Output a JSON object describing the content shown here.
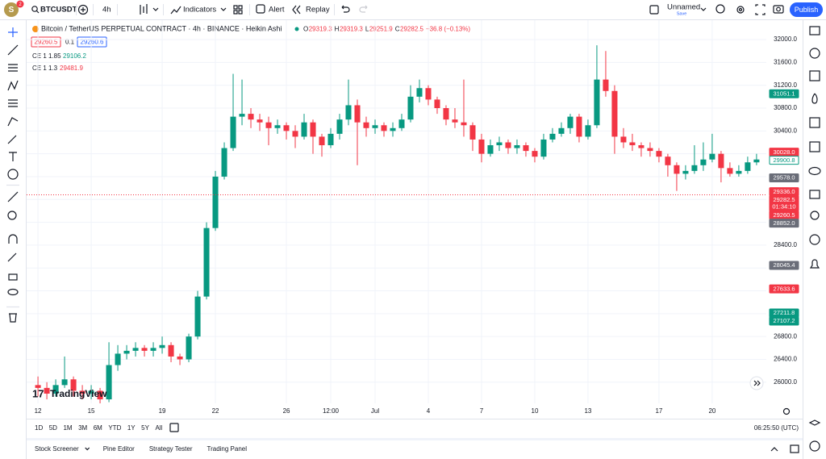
{
  "toolbar": {
    "avatar": "S",
    "badge": "2",
    "symbol": "BTCUSDT",
    "interval": "4h",
    "indicators": "Indicators",
    "alert": "Alert",
    "replay": "Replay",
    "layout_name": "Unnamed",
    "layout_status": "Save",
    "publish": "Publish"
  },
  "legend": {
    "title": "Bitcoin / TetherUS PERPETUAL CONTRACT · 4h · BINANCE · Heikin Ashi",
    "ohlc": [
      {
        "key": "O",
        "value": "29319.3"
      },
      {
        "key": "H",
        "value": "29319.3"
      },
      {
        "key": "L",
        "value": "29251.9"
      },
      {
        "key": "C",
        "value": "29282.5"
      }
    ],
    "change": "−36.8 (−0.13%)"
  },
  "indicator_rows": {
    "price_box": "29260.5",
    "step": "0.1",
    "price_box_2": "29260.6",
    "ce_1": {
      "name": "CE 1 1.85",
      "value": "29106.2"
    },
    "ce_2": {
      "name": "CE 1 1.3",
      "value": "29481.9"
    }
  },
  "watermark": "TradingView",
  "timeframes": [
    "1D",
    "5D",
    "1M",
    "3M",
    "6M",
    "YTD",
    "1Y",
    "5Y",
    "All"
  ],
  "clock": "06:25:50 (UTC)",
  "panels": [
    "Stock Screener",
    "Pine Editor",
    "Strategy Tester",
    "Trading Panel"
  ],
  "chart_data": {
    "type": "candlestick",
    "up_color": "#089981",
    "down_color": "#f23645",
    "grid": true,
    "x": [
      12,
      12.5,
      13,
      13.5,
      14,
      14.5,
      15,
      15.5,
      16,
      16.5,
      17,
      17.5,
      18,
      18.5,
      19,
      19.5,
      20,
      20.5,
      21,
      21.5,
      22,
      22.5,
      23,
      23.5,
      24,
      24.5,
      25,
      25.5,
      26,
      26.5,
      27,
      27.5,
      28,
      28.5,
      29,
      29.5,
      30,
      30.5,
      31,
      31.5,
      32,
      32.5,
      33,
      33.5,
      34,
      34.5,
      35,
      35.5,
      36,
      36.5,
      37,
      37.5,
      38,
      38.5,
      39,
      39.5,
      40,
      40.5,
      41,
      41.5,
      42,
      42.5,
      43,
      43.5,
      44,
      44.5,
      45,
      45.5,
      46,
      46.5,
      47,
      47.5,
      48,
      48.5,
      49,
      49.5,
      50,
      50.5,
      51,
      51.5,
      52,
      52.5
    ],
    "open": [
      25950,
      25900,
      25800,
      25950,
      26050,
      25850,
      25800,
      25850,
      25700,
      26300,
      26500,
      26550,
      26600,
      26550,
      26600,
      26650,
      26450,
      26400,
      26800,
      27500,
      28700,
      29600,
      30100,
      30650,
      30700,
      30600,
      30550,
      30450,
      30500,
      30400,
      30300,
      30550,
      30300,
      30150,
      30350,
      30600,
      30850,
      30550,
      30450,
      30500,
      30400,
      30450,
      30600,
      31000,
      31150,
      30950,
      30800,
      30600,
      30550,
      30500,
      30250,
      30000,
      30150,
      30200,
      30100,
      30150,
      30050,
      29950,
      30250,
      30350,
      30450,
      30650,
      30300,
      30500,
      31300,
      31100,
      30300,
      30200,
      30150,
      30100,
      30050,
      29950,
      29800,
      29650,
      29700,
      29800,
      29900,
      30000,
      29750,
      29650,
      29700,
      29850
    ],
    "high": [
      26100,
      26000,
      26050,
      26450,
      26100,
      25950,
      25950,
      25900,
      26700,
      26650,
      26650,
      26700,
      26650,
      26700,
      26800,
      26700,
      26500,
      26850,
      27600,
      28800,
      29700,
      30200,
      31400,
      31300,
      30800,
      30700,
      30650,
      30600,
      30550,
      30500,
      30700,
      30600,
      30350,
      30450,
      30700,
      31300,
      30950,
      30650,
      30600,
      30550,
      30550,
      30700,
      31200,
      31300,
      31200,
      31000,
      30850,
      30800,
      31300,
      30550,
      30350,
      30250,
      30300,
      30250,
      30250,
      30200,
      30100,
      30350,
      30450,
      30550,
      30700,
      30700,
      30600,
      31900,
      31800,
      31200,
      30450,
      30350,
      30200,
      30200,
      30100,
      30000,
      29850,
      29800,
      30150,
      30200,
      30350,
      30050,
      29850,
      29800,
      29950,
      30000
    ],
    "low": [
      25750,
      25700,
      25750,
      25900,
      25750,
      25700,
      25700,
      25600,
      25650,
      26200,
      26400,
      26450,
      26450,
      26450,
      26500,
      26350,
      26300,
      26350,
      26750,
      27450,
      28650,
      29550,
      30050,
      30500,
      30450,
      30400,
      30150,
      30350,
      30250,
      30100,
      30250,
      30000,
      29950,
      30100,
      30250,
      30500,
      29800,
      30300,
      30350,
      30300,
      30300,
      30400,
      30550,
      30900,
      30850,
      30700,
      30500,
      30450,
      30300,
      30050,
      29850,
      29950,
      30050,
      30000,
      30000,
      29950,
      29850,
      29900,
      30200,
      30300,
      30350,
      30200,
      30250,
      30450,
      31000,
      30000,
      30100,
      30050,
      29950,
      29950,
      29850,
      29600,
      29350,
      29550,
      29650,
      29700,
      29850,
      29500,
      29600,
      29600,
      29650,
      29800
    ],
    "close": [
      25900,
      25800,
      25950,
      26050,
      25850,
      25800,
      25850,
      25700,
      26300,
      26500,
      26550,
      26600,
      26550,
      26600,
      26650,
      26450,
      26400,
      26800,
      27500,
      28700,
      29600,
      30100,
      30650,
      30700,
      30600,
      30550,
      30450,
      30500,
      30400,
      30300,
      30550,
      30300,
      30150,
      30350,
      30600,
      30850,
      30550,
      30450,
      30500,
      30400,
      30450,
      30600,
      31000,
      31150,
      30950,
      30800,
      30600,
      30550,
      30500,
      30250,
      30000,
      30150,
      30200,
      30100,
      30150,
      30050,
      29950,
      30250,
      30350,
      30450,
      30650,
      30300,
      30500,
      31300,
      31100,
      30300,
      30200,
      30150,
      30100,
      30050,
      29950,
      29800,
      29650,
      29700,
      29800,
      29900,
      30000,
      29750,
      29650,
      29700,
      29850,
      29900
    ],
    "xlim": [
      11.36,
      53.05
    ],
    "xticks": [
      12,
      15,
      19,
      22,
      26,
      {
        "value": 28.5,
        "label": "12:00"
      },
      {
        "value": 31,
        "label": "Jul"
      },
      {
        "value": 34,
        "label": "4"
      },
      {
        "value": 37,
        "label": "7"
      },
      {
        "value": 40,
        "label": "10"
      },
      {
        "value": 43,
        "label": "13"
      },
      {
        "value": 47,
        "label": "17"
      },
      {
        "value": 50,
        "label": "20"
      }
    ],
    "ylim": [
      25630,
      32340
    ],
    "yticks": [
      {
        "value": 26000,
        "label": "26000.0"
      },
      {
        "value": 26400,
        "label": "26400.0"
      },
      {
        "value": 26800,
        "label": "26800.0"
      },
      {
        "value": 27200,
        "label": "27200.0"
      },
      {
        "value": 27600,
        "label": "27600.0"
      },
      {
        "value": 28000,
        "label": "28000.0"
      },
      {
        "value": 28400,
        "label": "28400.0"
      },
      {
        "value": 28800,
        "label": "28800.0"
      },
      {
        "value": 29200,
        "label": "29200.0"
      },
      {
        "value": 29600,
        "label": "29600.0"
      },
      {
        "value": 30000,
        "label": "30000.0"
      },
      {
        "value": 30400,
        "label": "30400.0"
      },
      {
        "value": 30800,
        "label": "30800.0"
      },
      {
        "value": 31200,
        "label": "31200.0"
      },
      {
        "value": 31600,
        "label": "31600.0"
      },
      {
        "value": 32000,
        "label": "32000.0"
      }
    ],
    "price_labels": [
      {
        "value": 31051.1,
        "color": "#089981"
      },
      {
        "value": 30028,
        "label": "30028.0",
        "color": "#f23645"
      },
      {
        "value": 29900.8,
        "color": "#089981",
        "outline": true
      },
      {
        "value": 29578,
        "label": "29578.0",
        "color": "#6a6d78"
      },
      {
        "value": 29336,
        "label": "29336.0",
        "color": "#f23645"
      },
      {
        "value": 29282.5,
        "color": "#f23645",
        "countdown": "01:34:10",
        "price_line": true
      },
      {
        "value": 29260.5,
        "color": "#f23645"
      },
      {
        "value": 28852,
        "label": "28852.0",
        "color": "#6a6d78"
      },
      {
        "value": 28045.4,
        "color": "#6a6d78"
      },
      {
        "value": 27633.6,
        "color": "#f23645"
      },
      {
        "value": 27211.8,
        "color": "#089981"
      },
      {
        "value": 27107.2,
        "color": "#089981"
      }
    ]
  }
}
